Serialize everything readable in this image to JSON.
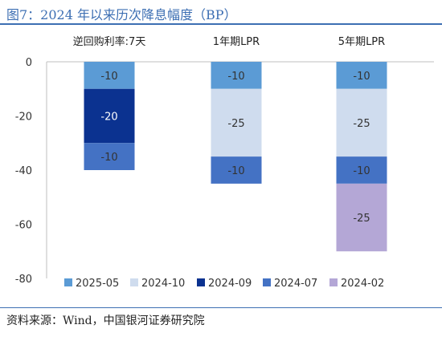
{
  "title": "图7：2024 年以来历次降息幅度（BP）",
  "source": "资料来源：Wind，中国银河证券研究院",
  "chart_data": {
    "type": "bar",
    "stacked": true,
    "title": "图7：2024 年以来历次降息幅度（BP）",
    "categories": [
      "逆回购利率:7天",
      "1年期LPR",
      "5年期LPR"
    ],
    "ylim": [
      -80,
      0
    ],
    "yticks": [
      0,
      -20,
      -40,
      -60,
      -80
    ],
    "category_axis_position": "top",
    "grid": false,
    "legend_position": "bottom",
    "series": [
      {
        "name": "2025-05",
        "color": "#5b9bd5",
        "values": [
          -10,
          -10,
          -10
        ]
      },
      {
        "name": "2024-10",
        "color": "#cfdcee",
        "values": [
          0,
          -25,
          -25
        ]
      },
      {
        "name": "2024-09",
        "color": "#0b3290",
        "values": [
          -20,
          0,
          0
        ]
      },
      {
        "name": "2024-07",
        "color": "#4472c4",
        "values": [
          -10,
          -10,
          -10
        ]
      },
      {
        "name": "2024-02",
        "color": "#b4a7d6",
        "values": [
          0,
          0,
          -25
        ]
      }
    ]
  }
}
